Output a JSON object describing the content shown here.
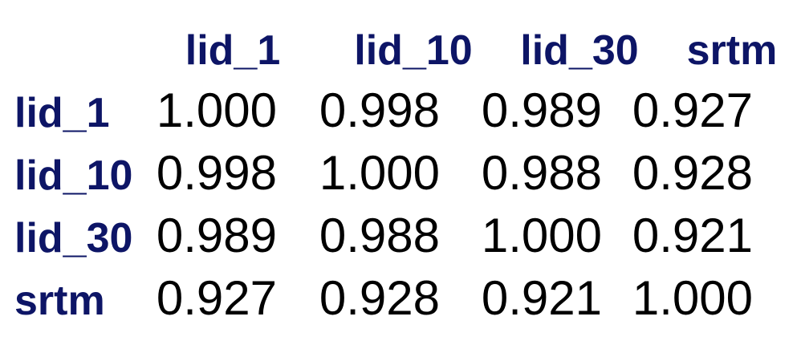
{
  "chart_data": {
    "type": "table",
    "title": "",
    "columns": [
      "lid_1",
      "lid_10",
      "lid_30",
      "srtm"
    ],
    "rows": [
      "lid_1",
      "lid_10",
      "lid_30",
      "srtm"
    ],
    "values": [
      [
        "1.000",
        "0.998",
        "0.989",
        "0.927"
      ],
      [
        "0.998",
        "1.000",
        "0.988",
        "0.928"
      ],
      [
        "0.989",
        "0.988",
        "1.000",
        "0.921"
      ],
      [
        "0.927",
        "0.928",
        "0.921",
        "1.000"
      ]
    ]
  },
  "colors": {
    "header_text": "#0d1566",
    "value_text": "#000000",
    "background": "#ffffff"
  }
}
